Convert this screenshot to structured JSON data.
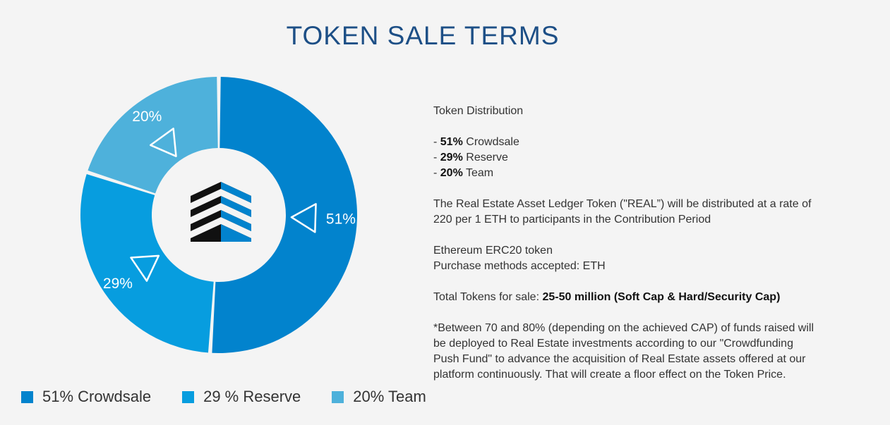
{
  "title": "TOKEN SALE TERMS",
  "chart_data": {
    "type": "pie",
    "variant": "donut",
    "slices": [
      {
        "label": "Crowdsale",
        "value": 51,
        "display": "51%",
        "color": "#0283cd"
      },
      {
        "label": "Reserve",
        "value": 29,
        "display": "29%",
        "color": "#079ddf"
      },
      {
        "label": "Team",
        "value": 20,
        "display": "20%",
        "color": "#4eb1db"
      }
    ],
    "legend": [
      {
        "text": "51% Crowdsale",
        "color": "#0283cd"
      },
      {
        "text": "29 % Reserve",
        "color": "#079ddf"
      },
      {
        "text": "20% Team",
        "color": "#4eb1db"
      }
    ],
    "legend_position": "bottom-left"
  },
  "info": {
    "heading": "Token Distribution",
    "distribution": [
      {
        "prefix": "- ",
        "pct": "51%",
        "label": " Crowdsale"
      },
      {
        "prefix": "- ",
        "pct": "29%",
        "label": " Reserve"
      },
      {
        "prefix": "- ",
        "pct": "20%",
        "label": " Team"
      }
    ],
    "rate_line1": "The Real Estate Asset Ledger Token (\"REAL”) will be distributed at a rate of",
    "rate_line2": "220 per 1 ETH to participants in the Contribution Period",
    "token_type": "Ethereum ERC20 token",
    "purchase_methods": "Purchase methods accepted: ETH",
    "total_label": "Total Tokens for sale: ",
    "total_value": "25-50 million (Soft Cap & Hard/Security Cap)",
    "note_lines": [
      "*Between 70 and 80% (depending on the achieved CAP) of funds raised will",
      "be deployed to Real Estate investments according to our \"Crowdfunding",
      "Push Fund\" to advance the acquisition of Real Estate assets offered at our",
      "platform continuously. That will create a floor effect on the Token Price."
    ]
  }
}
